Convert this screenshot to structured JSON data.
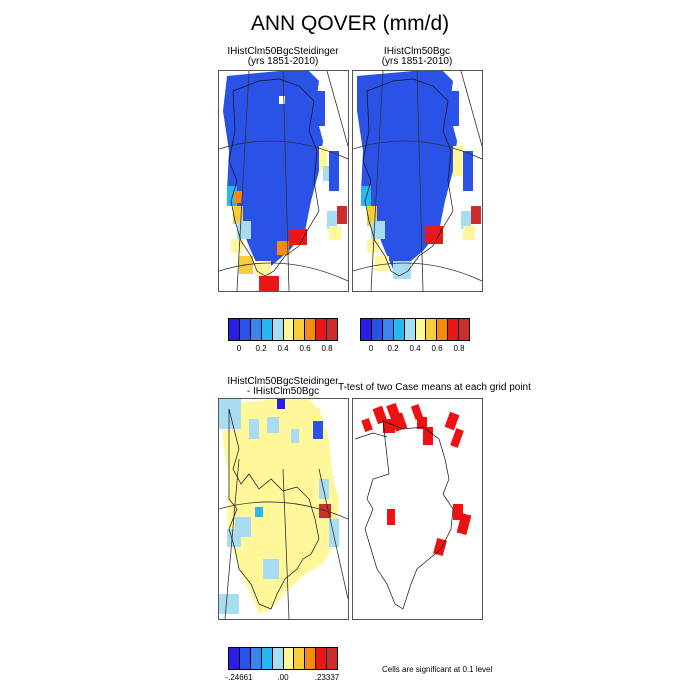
{
  "title": "ANN QOVER (mm/d)",
  "panels": {
    "top_left": {
      "line1": "IHistClm50BgcSteidinger",
      "line2": "(yrs 1851-2010)"
    },
    "top_right": {
      "line1": "IHistClm50Bgc",
      "line2": "(yrs 1851-2010)"
    },
    "bottom_left": {
      "line1": "IHistClm50BgcSteidinger",
      "line2": "- IHistClm50Bgc"
    },
    "bottom_right": {
      "line1": "T-test of two Case means at each grid point"
    }
  },
  "colorbar_top": {
    "colors": [
      "#2a1ee6",
      "#2b52e6",
      "#3a86ee",
      "#29b7f2",
      "#a8dcf0",
      "#fff79a",
      "#f7cb3a",
      "#f58a0f",
      "#e81818",
      "#cc2d2d"
    ],
    "ticks": [
      "0",
      "0.2",
      "0.4",
      "0.6",
      "0.8"
    ]
  },
  "colorbar_bottom": {
    "colors": [
      "#2a1ee6",
      "#2b52e6",
      "#3a86ee",
      "#29b7f2",
      "#a8dcf0",
      "#fff79a",
      "#f7cb3a",
      "#f58a0f",
      "#e81818",
      "#cc2d2d"
    ],
    "ticks": [
      "-.24661",
      ".00",
      ".23337"
    ]
  },
  "significance_note": "Cells are significant at 0.1 level",
  "chart_data": [
    {
      "type": "heatmap",
      "panel": "IHistClm50BgcSteidinger (yrs 1851-2010)",
      "units": "mm/d",
      "colorbar_range": [
        0,
        0.9
      ],
      "colorbar_ticks": [
        0,
        0.2,
        0.4,
        0.6,
        0.8
      ],
      "dominant_value": 0.0,
      "coastal_values_range": [
        0.3,
        0.9
      ]
    },
    {
      "type": "heatmap",
      "panel": "IHistClm50Bgc (yrs 1851-2010)",
      "units": "mm/d",
      "colorbar_range": [
        0,
        0.9
      ],
      "colorbar_ticks": [
        0,
        0.2,
        0.4,
        0.6,
        0.8
      ],
      "dominant_value": 0.0,
      "coastal_values_range": [
        0.3,
        0.9
      ]
    },
    {
      "type": "heatmap",
      "panel": "IHistClm50BgcSteidinger - IHistClm50Bgc",
      "units": "mm/d",
      "colorbar_range": [
        -0.24661,
        0.23337
      ],
      "colorbar_ticks": [
        -0.24661,
        0.0,
        0.23337
      ],
      "dominant_value": 0.0
    },
    {
      "type": "heatmap",
      "panel": "T-test of two Case means at each grid point",
      "significance_level": 0.1
    }
  ]
}
